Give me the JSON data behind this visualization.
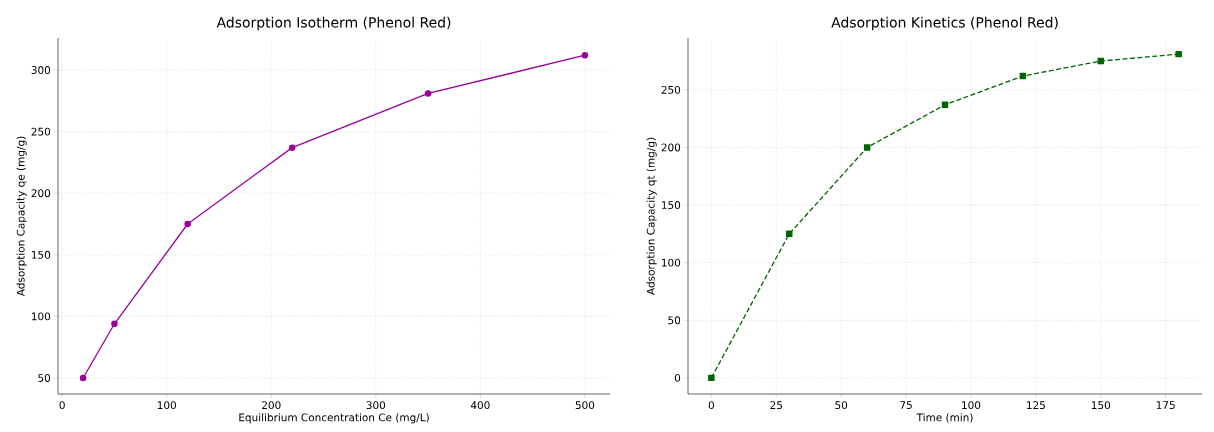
{
  "chart_data": [
    {
      "type": "line",
      "title": "Adsorption Isotherm (Phenol Red)",
      "xlabel": "Equilibrium Concentration Ce (mg/L)",
      "ylabel": "Adsorption Capacity qe (mg/g)",
      "x": [
        20,
        50,
        120,
        220,
        350,
        500
      ],
      "series": [
        {
          "color": "#990099",
          "values": [
            50,
            94,
            175,
            237,
            281,
            312
          ]
        }
      ],
      "xlim": [
        -4,
        524
      ],
      "ylim": [
        37,
        326
      ],
      "xticks": [
        0,
        100,
        200,
        300,
        400,
        500
      ],
      "yticks": [
        50,
        100,
        150,
        200,
        250,
        300
      ],
      "grid": true,
      "marker": "circle",
      "line_style": "solid"
    },
    {
      "type": "line",
      "title": "Adsorption Kinetics (Phenol Red)",
      "xlabel": "Time (min)",
      "ylabel": "Adsorption Capacity qt (mg/g)",
      "x": [
        0,
        30,
        60,
        90,
        120,
        150,
        180
      ],
      "series": [
        {
          "color": "#006400",
          "values": [
            0,
            125,
            200,
            237,
            262,
            275,
            281
          ]
        }
      ],
      "xlim": [
        -9,
        189
      ],
      "ylim": [
        -14,
        295
      ],
      "xticks": [
        0,
        25,
        50,
        75,
        100,
        125,
        150,
        175
      ],
      "yticks": [
        0,
        50,
        100,
        150,
        200,
        250
      ],
      "grid": true,
      "marker": "square",
      "line_style": "dashed"
    }
  ]
}
